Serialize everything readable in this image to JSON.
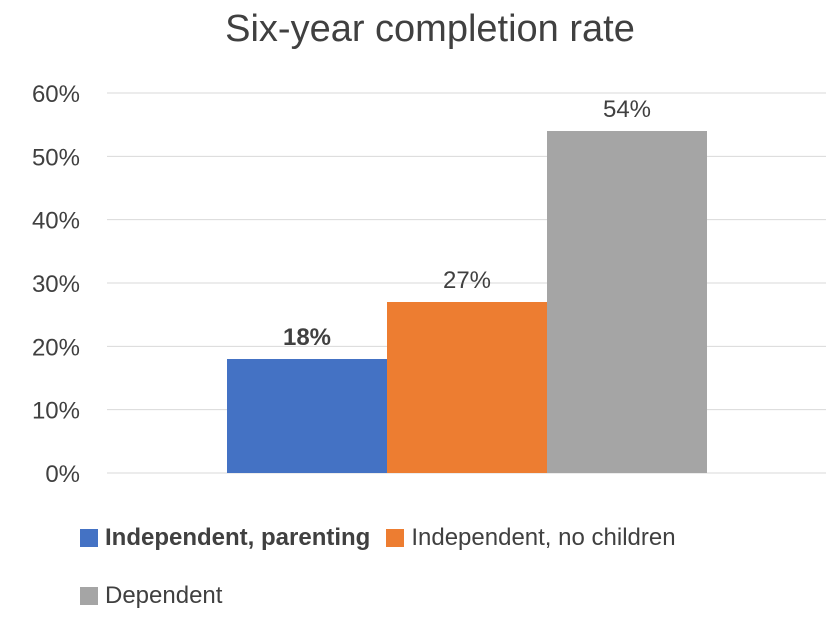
{
  "chart_data": {
    "type": "bar",
    "title": "Six-year completion rate",
    "categories": [
      ""
    ],
    "series": [
      {
        "name": "Independent, parenting",
        "values": [
          18
        ],
        "color": "#4472C4",
        "label": "18%",
        "bold": true
      },
      {
        "name": "Independent, no children",
        "values": [
          27
        ],
        "color": "#ED7D31",
        "label": "27%",
        "bold": false
      },
      {
        "name": "Dependent",
        "values": [
          54
        ],
        "color": "#A5A5A5",
        "label": "54%",
        "bold": false
      }
    ],
    "ylim": [
      0,
      60
    ],
    "yticks": [
      "0%",
      "10%",
      "20%",
      "30%",
      "40%",
      "50%",
      "60%"
    ],
    "grid": true,
    "legend_position": "bottom",
    "gridline_color": "#D9D9D9",
    "text_color": "#404040"
  }
}
